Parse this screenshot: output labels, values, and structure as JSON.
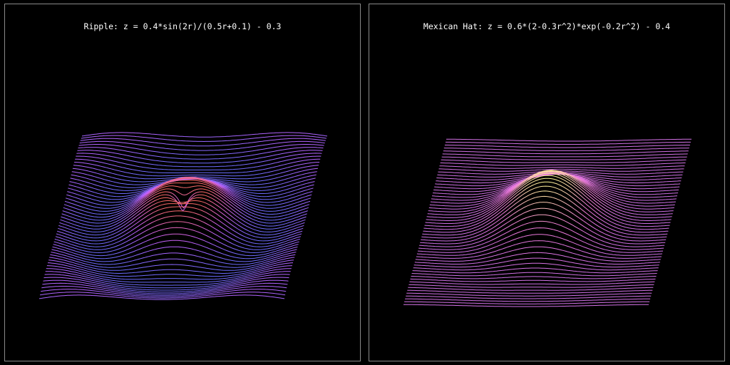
{
  "panels": [
    {
      "title": "Ripple: z = 0.4*sin(2r)/(0.5r+0.1) - 0.3",
      "function": "ripple",
      "colors": {
        "low": "#6a6cff",
        "high": "#ff6a5a",
        "mid": "#c860ff"
      }
    },
    {
      "title": "Mexican Hat: z = 0.6*(2-0.3r^2)*exp(-0.2r^2) - 0.4",
      "function": "mexican_hat",
      "colors": {
        "low": "#d070e8",
        "high": "#ffff90",
        "mid": "#f07ad8"
      }
    }
  ]
}
